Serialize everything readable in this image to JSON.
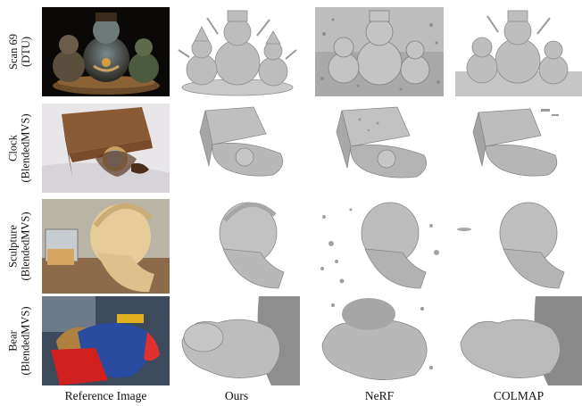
{
  "rows": [
    {
      "name": "Scan 69",
      "dataset": "(DTU)"
    },
    {
      "name": "Clock",
      "dataset": "(BlendedMVS)"
    },
    {
      "name": "Sculpture",
      "dataset": "(BlendedMVS)"
    },
    {
      "name": "Bear",
      "dataset": "(BlendedMVS)"
    }
  ],
  "columns": [
    "Reference Image",
    "Ours",
    "NeRF",
    "COLMAP"
  ]
}
